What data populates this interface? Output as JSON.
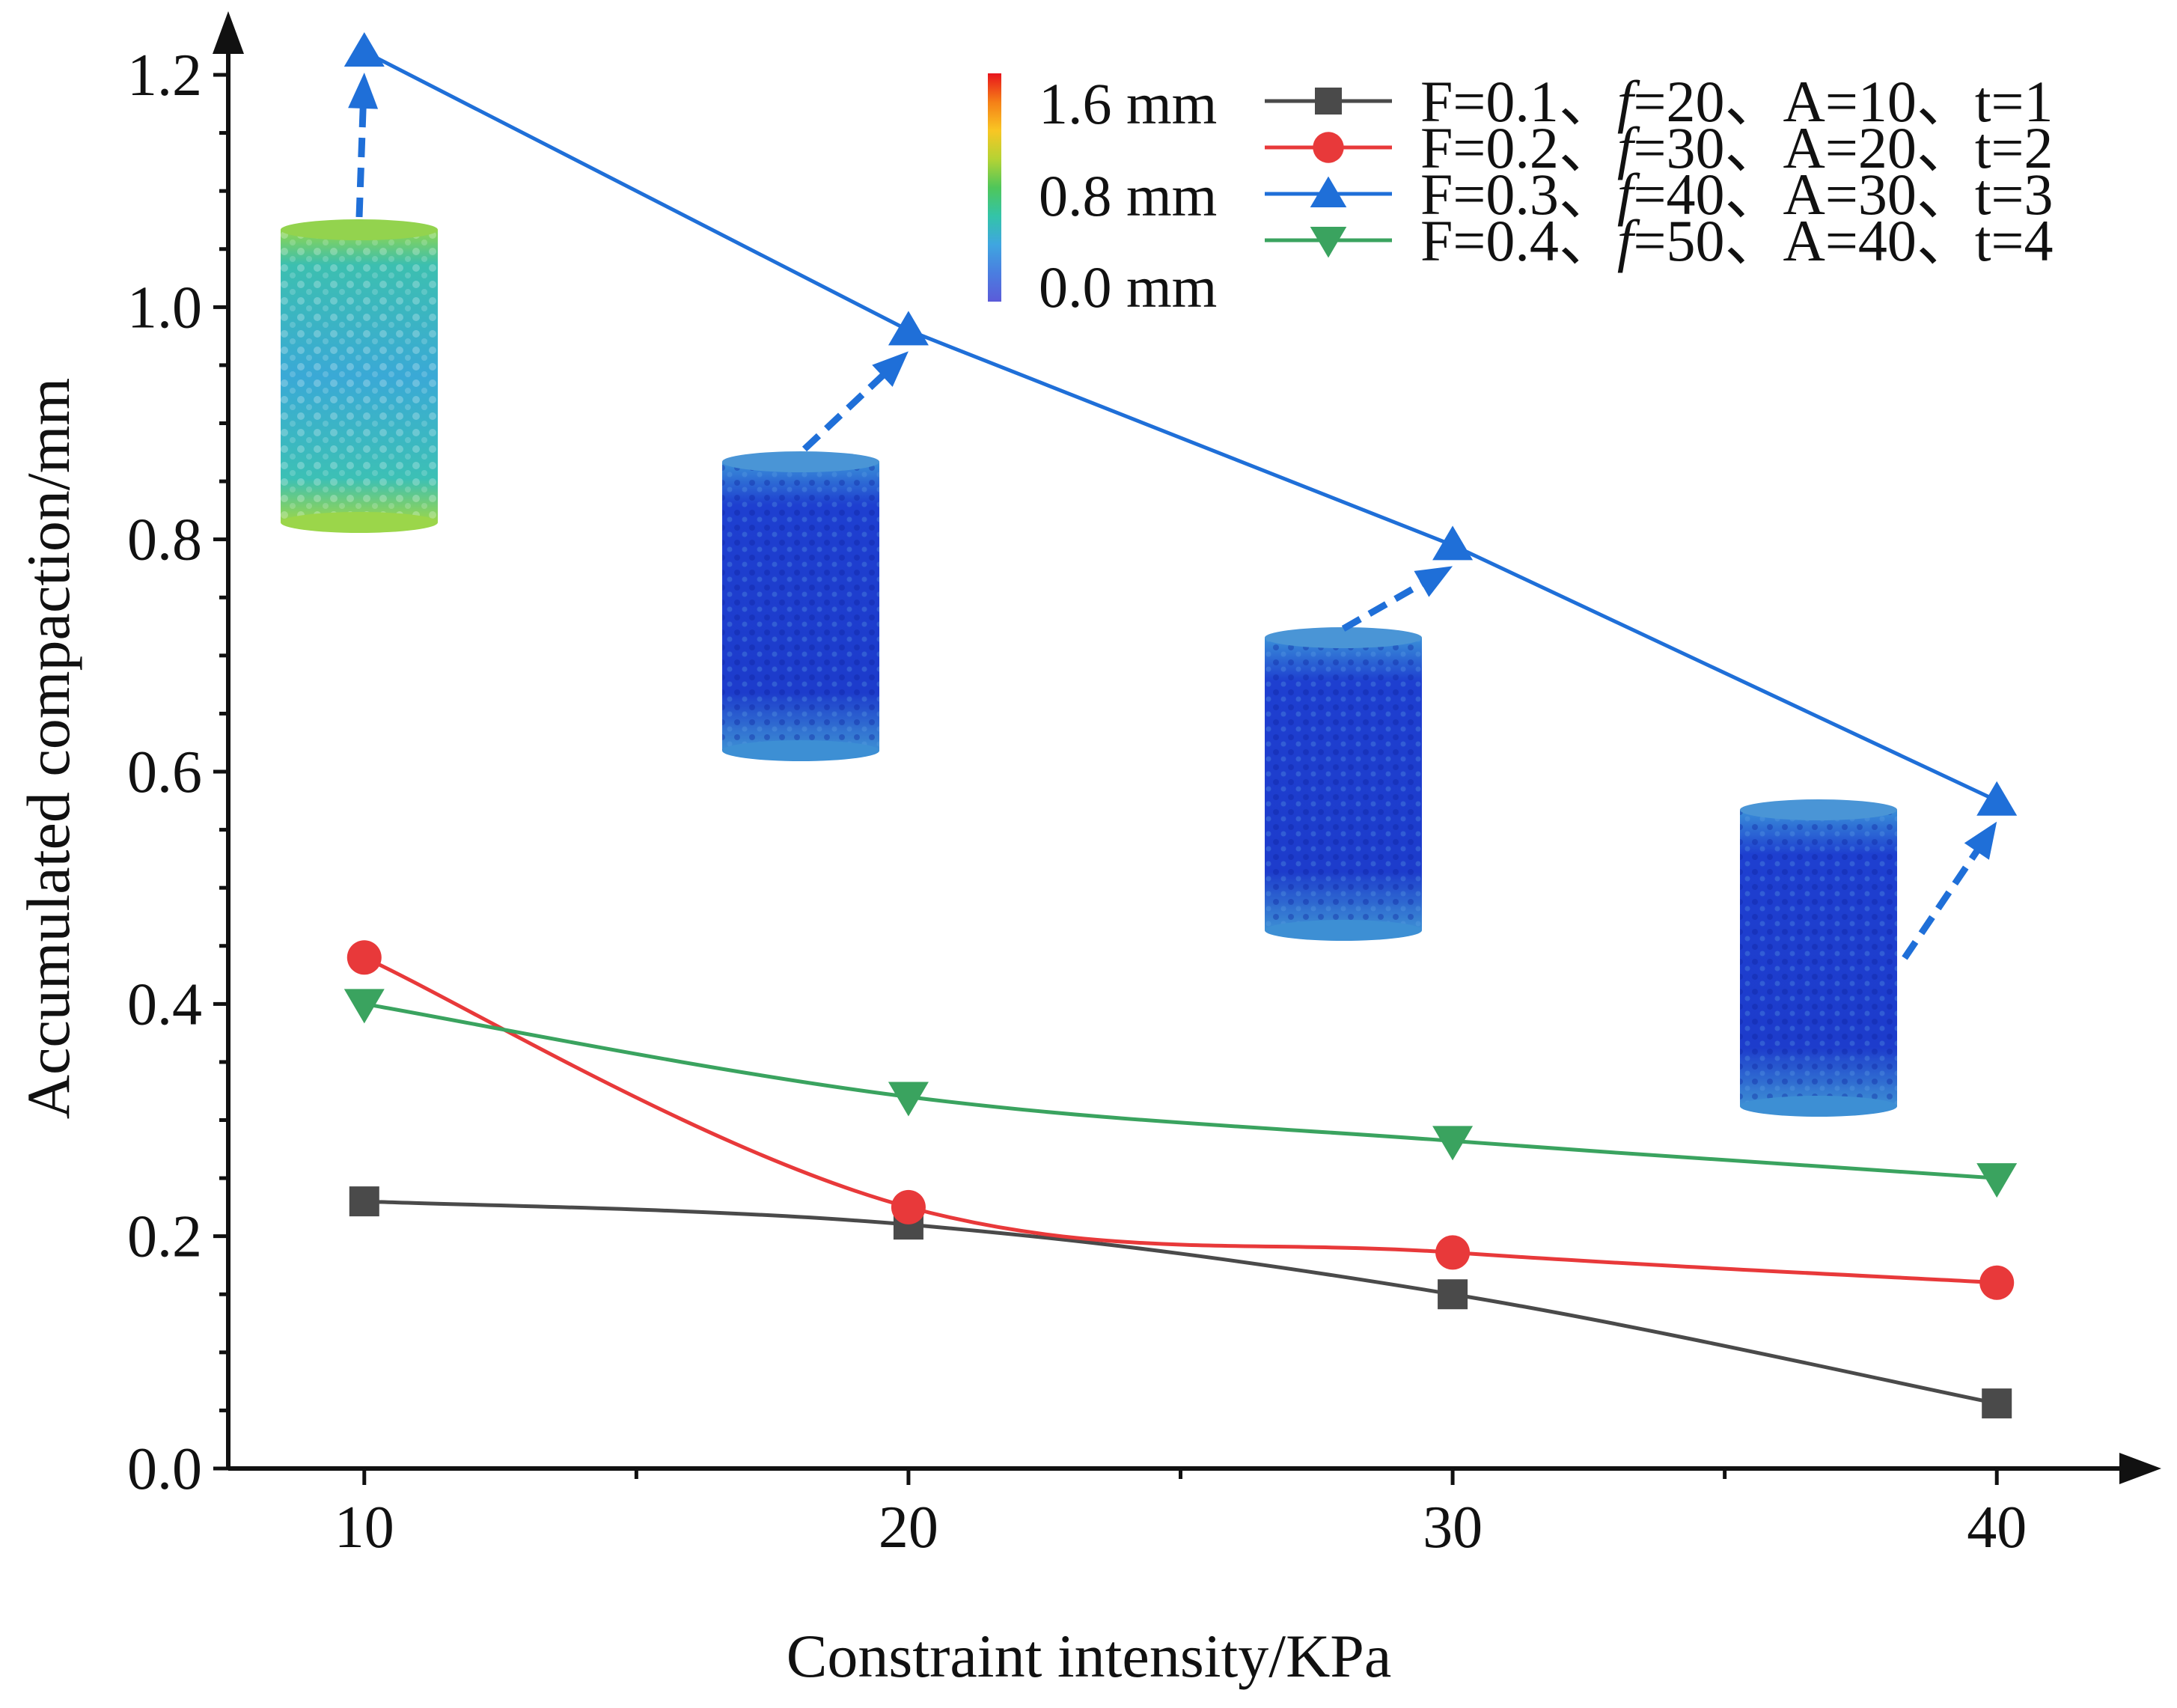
{
  "chart_data": {
    "type": "line",
    "title": "",
    "xlabel": "Constraint intensity/KPa",
    "ylabel": "Accumulated compaction/mm",
    "x": [
      10,
      20,
      30,
      40
    ],
    "xlim": [
      7.5,
      42.5
    ],
    "ylim": [
      0.0,
      1.2
    ],
    "x_ticks": [
      "10",
      "20",
      "30",
      "40"
    ],
    "y_ticks": [
      "0.0",
      "0.2",
      "0.4",
      "0.6",
      "0.8",
      "1.0",
      "1.2"
    ],
    "grid": false,
    "legend_position": "top-right",
    "series": [
      {
        "name": "F=0.1、f=20、A=10、t=1",
        "label_parts": [
          "F=0.1、",
          "f",
          "=20、A=10、t=1"
        ],
        "color": "#4a4a4a",
        "marker": "square",
        "values": [
          0.23,
          0.21,
          0.15,
          0.056
        ]
      },
      {
        "name": "F=0.2、f=30、A=20、t=2",
        "label_parts": [
          "F=0.2、",
          "f",
          "=30、A=20、t=2"
        ],
        "color": "#e8393a",
        "marker": "circle",
        "values": [
          0.44,
          0.225,
          0.186,
          0.16
        ]
      },
      {
        "name": "F=0.3、f=40、A=30、t=3",
        "label_parts": [
          "F=0.3、",
          "f",
          "=40、A=30、t=3"
        ],
        "color": "#1f6fd8",
        "marker": "triangle-up",
        "values": [
          1.22,
          0.98,
          0.795,
          0.575
        ]
      },
      {
        "name": "F=0.4、f=50、A=40、t=4",
        "label_parts": [
          "F=0.4、",
          "f",
          "=50、A=40、t=4"
        ],
        "color": "#3aa35f",
        "marker": "triangle-down",
        "values": [
          0.4,
          0.32,
          0.282,
          0.25
        ]
      }
    ],
    "colorbar": {
      "labels": [
        "1.6 mm",
        "0.8 mm",
        "0.0 mm"
      ],
      "colors": [
        "#e8141c",
        "#f57f17",
        "#f9c623",
        "#b5d334",
        "#4fc65a",
        "#33c4a8",
        "#3fa6e0",
        "#4a7ee0",
        "#5b5bd9"
      ]
    },
    "annotations": [
      {
        "type": "particle-sample-render",
        "x": 10,
        "y": 1.22,
        "palette": "green"
      },
      {
        "type": "particle-sample-render",
        "x": 20,
        "y": 0.98,
        "palette": "blue"
      },
      {
        "type": "particle-sample-render",
        "x": 30,
        "y": 0.795,
        "palette": "blue"
      },
      {
        "type": "particle-sample-render",
        "x": 40,
        "y": 0.575,
        "palette": "blue"
      }
    ]
  }
}
